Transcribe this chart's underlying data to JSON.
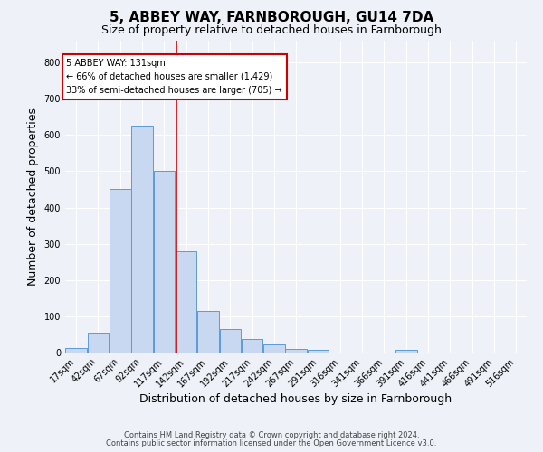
{
  "title": "5, ABBEY WAY, FARNBOROUGH, GU14 7DA",
  "subtitle": "Size of property relative to detached houses in Farnborough",
  "xlabel": "Distribution of detached houses by size in Farnborough",
  "ylabel": "Number of detached properties",
  "bar_values": [
    12,
    55,
    450,
    625,
    500,
    280,
    115,
    65,
    37,
    22,
    10,
    8,
    0,
    0,
    0,
    8,
    0,
    0,
    0,
    0,
    0
  ],
  "bar_labels": [
    "17sqm",
    "42sqm",
    "67sqm",
    "92sqm",
    "117sqm",
    "142sqm",
    "167sqm",
    "192sqm",
    "217sqm",
    "242sqm",
    "267sqm",
    "291sqm",
    "316sqm",
    "341sqm",
    "366sqm",
    "391sqm",
    "416sqm",
    "441sqm",
    "466sqm",
    "491sqm",
    "516sqm"
  ],
  "bar_color_fill": "#c8d8f0",
  "bar_color_edge": "#5b9bd5",
  "vline_x": 131,
  "vline_color": "#cc0000",
  "annotation_text": "5 ABBEY WAY: 131sqm\n← 66% of detached houses are smaller (1,429)\n33% of semi-detached houses are larger (705) →",
  "annotation_box_color": "white",
  "annotation_box_edge": "#cc0000",
  "ylim": [
    0,
    860
  ],
  "yticks": [
    0,
    100,
    200,
    300,
    400,
    500,
    600,
    700,
    800
  ],
  "footer1": "Contains HM Land Registry data © Crown copyright and database right 2024.",
  "footer2": "Contains public sector information licensed under the Open Government Licence v3.0.",
  "bg_color": "#eef2f8",
  "grid_color": "#ffffff",
  "title_fontsize": 11,
  "subtitle_fontsize": 9,
  "tick_fontsize": 7,
  "label_fontsize": 9,
  "footer_fontsize": 6
}
